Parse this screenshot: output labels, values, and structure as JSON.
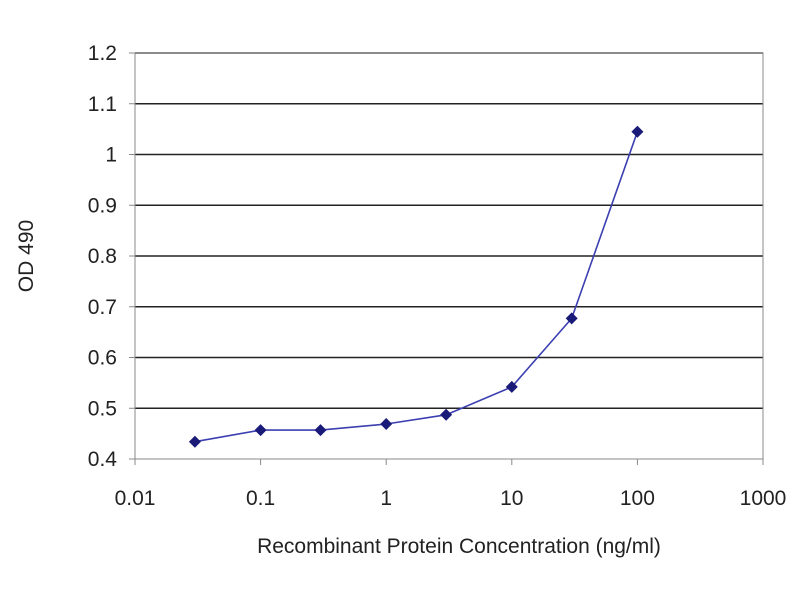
{
  "chart_data": {
    "type": "line",
    "title": "",
    "xlabel": "Recombinant Protein Concentration (ng/ml)",
    "ylabel": "OD 490",
    "xscale": "log",
    "xlim": [
      0.01,
      1000
    ],
    "ylim": [
      0.4,
      1.2
    ],
    "xticks": [
      "0.01",
      "0.1",
      "1",
      "10",
      "100",
      "1000"
    ],
    "yticks": [
      "0.4",
      "0.5",
      "0.6",
      "0.7",
      "0.8",
      "0.9",
      "1",
      "1.1",
      "1.2"
    ],
    "grid": "horizontal",
    "legend": "none",
    "series": [
      {
        "x": [
          0.03,
          0.1,
          0.3,
          1,
          3,
          10,
          30,
          100
        ],
        "y": [
          0.434,
          0.457,
          0.457,
          0.469,
          0.487,
          0.542,
          0.677,
          1.045
        ]
      }
    ],
    "colors": {
      "line": "#3b3fb0",
      "marker": "#1a1a78",
      "grid": "#222222",
      "axis": "#888888",
      "plot_background": "#ffffff"
    },
    "marker": "diamond"
  }
}
